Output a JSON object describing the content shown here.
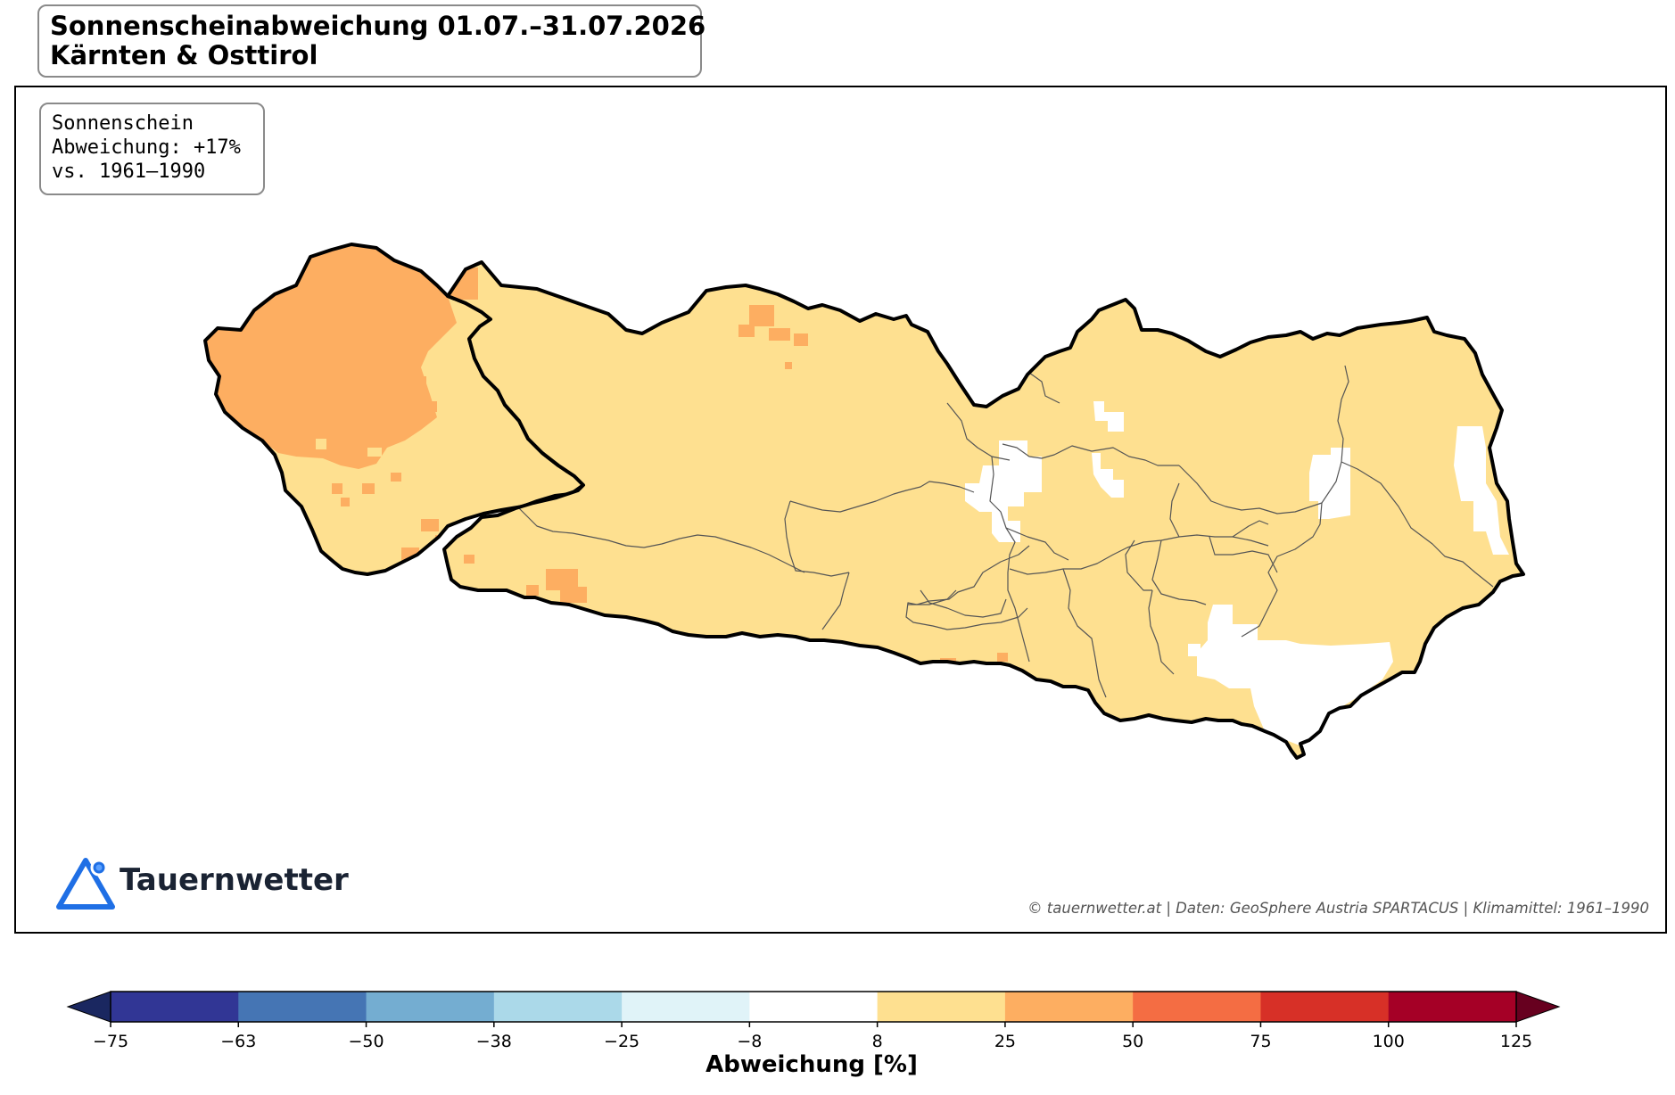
{
  "title": {
    "line1": "Sonnenscheinabweichung 01.07.–31.07.2026",
    "line2": "Kärnten & Osttirol"
  },
  "info": {
    "line1": "Sonnenschein",
    "line2": "Abweichung: +17%",
    "line3": "vs. 1961–1990"
  },
  "logo": {
    "name": "Tauernwetter",
    "icon": "mountain-triangle-icon"
  },
  "credit": "© tauernwetter.at | Daten: GeoSphere Austria SPARTACUS | Klimamittel: 1961–1990",
  "colorbar": {
    "label": "Abweichung [%]",
    "ticks": [
      "−75",
      "−63",
      "−50",
      "−38",
      "−25",
      "−8",
      "8",
      "25",
      "50",
      "75",
      "100",
      "125"
    ],
    "tick_values": [
      -75,
      -63,
      -50,
      -38,
      -25,
      -8,
      8,
      25,
      50,
      75,
      100,
      125
    ],
    "colors": [
      "#313695",
      "#4575b4",
      "#74add1",
      "#abd9e9",
      "#e0f3f8",
      "#ffffff",
      "#fee090",
      "#fdae61",
      "#f46d43",
      "#d73027",
      "#a50026"
    ],
    "under_color": "#1a2760",
    "over_color": "#67001f"
  },
  "map_colors": {
    "main_fill": "#fee090",
    "high_fill": "#fdae61",
    "neutral_fill": "#ffffff",
    "border": "#000000",
    "district_lines": "#555555"
  }
}
